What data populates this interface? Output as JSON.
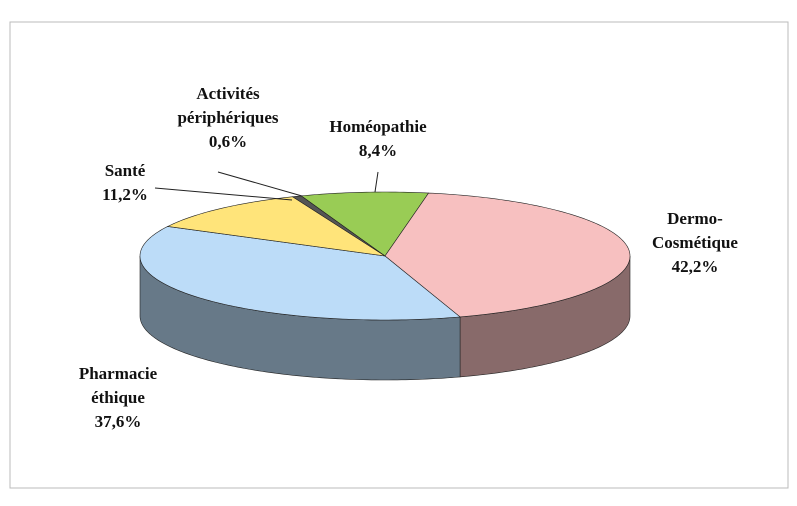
{
  "chart_data": {
    "type": "pie3d",
    "categories": [
      "Homéopathie",
      "Dermo-Cosmétique",
      "Pharmacie éthique",
      "Santé",
      "Activités périphériques"
    ],
    "values": [
      8.4,
      42.2,
      37.6,
      11.2,
      0.6
    ],
    "value_labels": [
      "8,4%",
      "42,2%",
      "37,6%",
      "11,2%",
      "0,6%"
    ],
    "colors": [
      "#99cc55",
      "#f7c0c0",
      "#bcdcf8",
      "#ffe47a",
      "#555555"
    ]
  }
}
